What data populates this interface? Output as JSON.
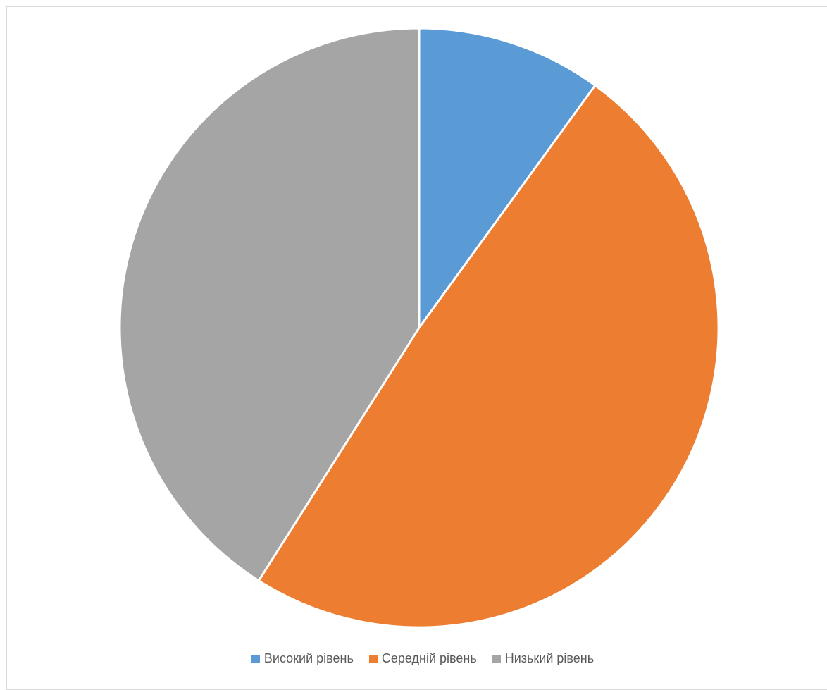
{
  "chart_data": {
    "type": "pie",
    "categories": [
      "Високий рівень",
      "Середній рівень",
      "Низький рівень"
    ],
    "values": [
      10,
      49,
      41
    ],
    "colors": [
      "#5b9bd5",
      "#ed7d31",
      "#a5a5a5"
    ],
    "title": "",
    "legend_position": "bottom"
  }
}
